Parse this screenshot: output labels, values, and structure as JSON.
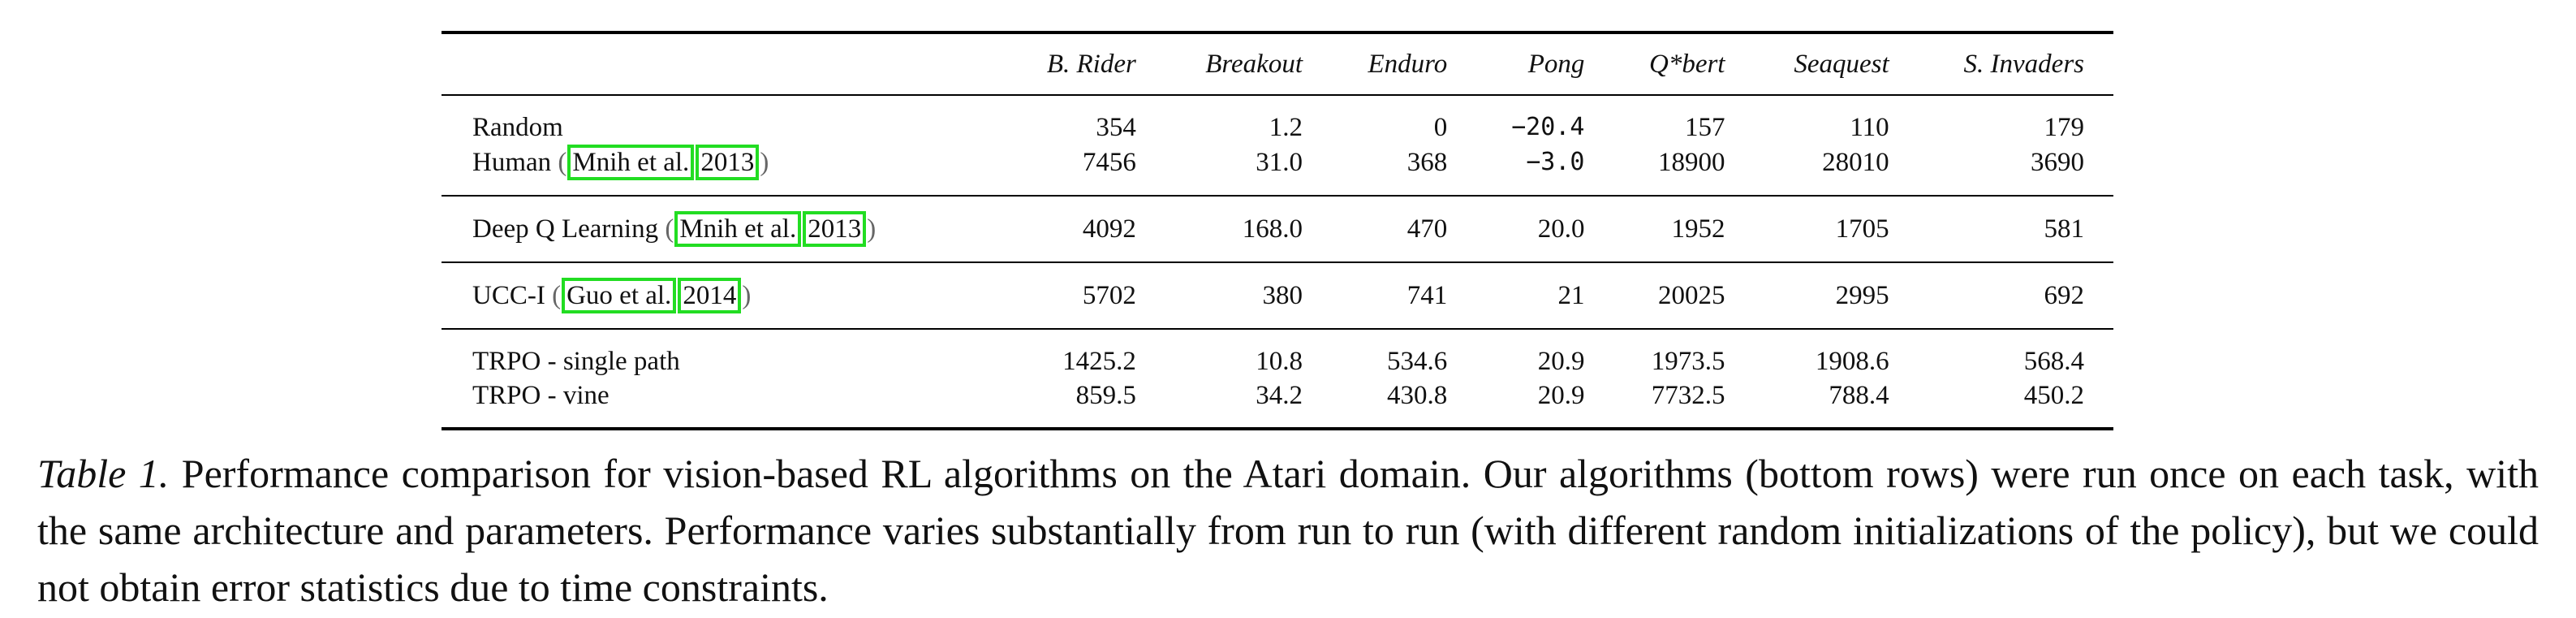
{
  "table": {
    "columns": [
      "",
      "B. Rider",
      "Breakout",
      "Enduro",
      "Pong",
      "Q*bert",
      "Seaquest",
      "S. Invaders"
    ],
    "groups": [
      {
        "rows": [
          {
            "name": "Random",
            "cite": null,
            "values": [
              "354",
              "1.2",
              "0",
              "−20.4",
              "157",
              "110",
              "179"
            ]
          },
          {
            "name": "Human",
            "cite": {
              "author": "Mnih et al.",
              "year": "2013"
            },
            "values": [
              "7456",
              "31.0",
              "368",
              "−3.0",
              "18900",
              "28010",
              "3690"
            ]
          }
        ]
      },
      {
        "rows": [
          {
            "name": "Deep Q Learning",
            "cite": {
              "author": "Mnih et al.",
              "year": "2013"
            },
            "values": [
              "4092",
              "168.0",
              "470",
              "20.0",
              "1952",
              "1705",
              "581"
            ]
          }
        ]
      },
      {
        "rows": [
          {
            "name": "UCC-I",
            "cite": {
              "author": "Guo et al.",
              "year": "2014"
            },
            "values": [
              "5702",
              "380",
              "741",
              "21",
              "20025",
              "2995",
              "692"
            ]
          }
        ]
      },
      {
        "rows": [
          {
            "name": "TRPO - single path",
            "cite": null,
            "values": [
              "1425.2",
              "10.8",
              "534.6",
              "20.9",
              "1973.5",
              "1908.6",
              "568.4"
            ]
          },
          {
            "name": "TRPO - vine",
            "cite": null,
            "values": [
              "859.5",
              "34.2",
              "430.8",
              "20.9",
              "7732.5",
              "788.4",
              "450.2"
            ]
          }
        ]
      }
    ],
    "highlight_color": "#22dd22"
  },
  "caption": {
    "label": "Table 1.",
    "text": "Performance comparison for vision-based RL algorithms on the Atari domain.  Our algorithms (bottom rows) were run once on each task, with the same architecture and parameters.  Performance varies substantially from run to run (with different random initializations of the policy), but we could not obtain error statistics due to time constraints."
  }
}
